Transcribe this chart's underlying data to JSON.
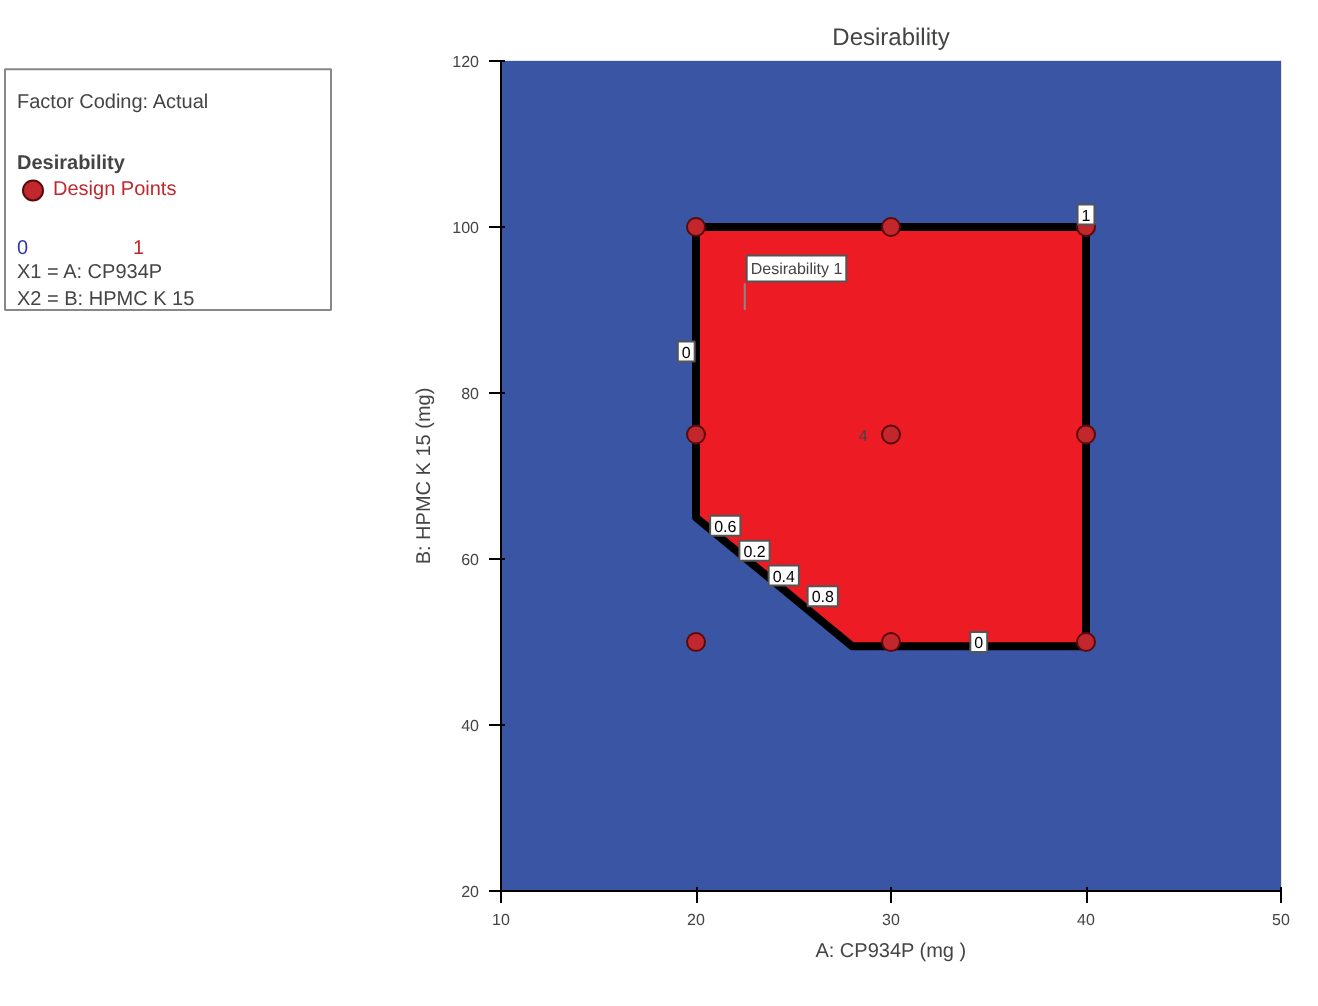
{
  "chart_data": {
    "type": "scatter",
    "title": "Desirability",
    "xlabel": "A: CP934P (mg )",
    "ylabel": "B: HPMC K 15 (mg)",
    "legend_title": "Desirability",
    "xlim": [
      10,
      50
    ],
    "xticks": [
      10,
      20,
      30,
      40,
      50
    ],
    "ylim": [
      20,
      120
    ],
    "yticks": [
      20,
      40,
      60,
      80,
      100,
      120
    ],
    "legend": "top left",
    "bands": [
      {
        "axis": "x",
        "from": 10,
        "to": 50,
        "color": "#3a55a4"
      }
    ],
    "series": [
      {
        "type": "area",
        "color": "#ed1c24",
        "x": [
          20,
          40,
          40,
          28,
          20,
          20
        ],
        "values": [
          100,
          100,
          49.5,
          49.5,
          65,
          100
        ]
      },
      {
        "name": "Design Points",
        "color": "#c1272d",
        "marker": "circle",
        "x": [
          20,
          30,
          40,
          20,
          30,
          40,
          20,
          30,
          40
        ],
        "values": [
          100,
          100,
          100,
          75,
          75,
          75,
          50,
          50,
          50
        ]
      }
    ],
    "annotations": [
      "Factor Coding: Actual",
      "0",
      "1",
      "X1 = A: CP934P",
      "X2 = B: HPMC K 15",
      "Desirability 1",
      "4",
      {
        "text": "0",
        "x": 19.5,
        "y": 85
      },
      {
        "text": "0.6",
        "x": 21.5,
        "y": 64
      },
      {
        "text": "0.2",
        "x": 23,
        "y": 61
      },
      {
        "text": "0.4",
        "x": 24.5,
        "y": 58
      },
      {
        "text": "0.8",
        "x": 26.5,
        "y": 55.5
      },
      {
        "text": "0",
        "x": 34.5,
        "y": 50
      },
      {
        "text": "1",
        "x": 40,
        "y": 101.5
      }
    ]
  }
}
